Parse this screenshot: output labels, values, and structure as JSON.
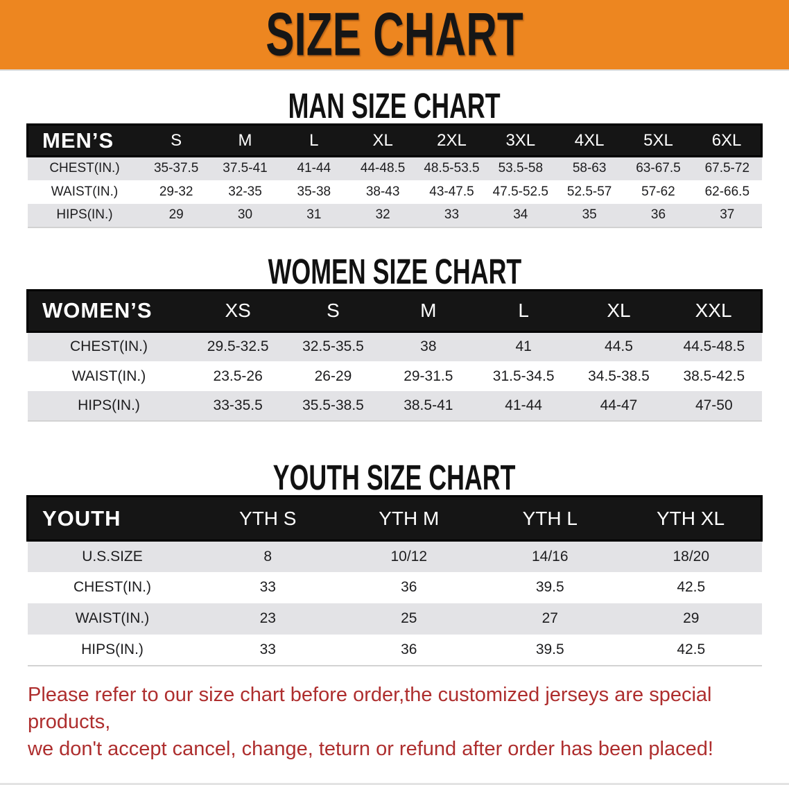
{
  "banner": {
    "title": "SIZE CHART"
  },
  "colors": {
    "banner_bg": "#ED8620",
    "table_header_bg": "#151515",
    "row_stripe": "#E3E3E6",
    "disclaimer_text": "#AE2E2E"
  },
  "sections": [
    {
      "heading": "MAN SIZE CHART",
      "table": {
        "label": "MEN’S",
        "columns": [
          "S",
          "M",
          "L",
          "XL",
          "2XL",
          "3XL",
          "4XL",
          "5XL",
          "6XL"
        ],
        "rows": [
          {
            "label": "CHEST(IN.)",
            "values": [
              "35-37.5",
              "37.5-41",
              "41-44",
              "44-48.5",
              "48.5-53.5",
              "53.5-58",
              "58-63",
              "63-67.5",
              "67.5-72"
            ]
          },
          {
            "label": "WAIST(IN.)",
            "values": [
              "29-32",
              "32-35",
              "35-38",
              "38-43",
              "43-47.5",
              "47.5-52.5",
              "52.5-57",
              "57-62",
              "62-66.5"
            ]
          },
          {
            "label": "HIPS(IN.)",
            "values": [
              "29",
              "30",
              "31",
              "32",
              "33",
              "34",
              "35",
              "36",
              "37"
            ]
          }
        ]
      }
    },
    {
      "heading": "WOMEN SIZE CHART",
      "table": {
        "label": "WOMEN’S",
        "columns": [
          "XS",
          "S",
          "M",
          "L",
          "XL",
          "XXL"
        ],
        "rows": [
          {
            "label": "CHEST(IN.)",
            "values": [
              "29.5-32.5",
              "32.5-35.5",
              "38",
              "41",
              "44.5",
              "44.5-48.5"
            ]
          },
          {
            "label": "WAIST(IN.)",
            "values": [
              "23.5-26",
              "26-29",
              "29-31.5",
              "31.5-34.5",
              "34.5-38.5",
              "38.5-42.5"
            ]
          },
          {
            "label": "HIPS(IN.)",
            "values": [
              "33-35.5",
              "35.5-38.5",
              "38.5-41",
              "41-44",
              "44-47",
              "47-50"
            ]
          }
        ]
      }
    },
    {
      "heading": "YOUTH SIZE CHART",
      "table": {
        "label": "YOUTH",
        "columns": [
          "YTH S",
          "YTH M",
          "YTH L",
          "YTH XL"
        ],
        "rows": [
          {
            "label": "U.S.SIZE",
            "values": [
              "8",
              "10/12",
              "14/16",
              "18/20"
            ]
          },
          {
            "label": "CHEST(IN.)",
            "values": [
              "33",
              "36",
              "39.5",
              "42.5"
            ]
          },
          {
            "label": "WAIST(IN.)",
            "values": [
              "23",
              "25",
              "27",
              "29"
            ]
          },
          {
            "label": "HIPS(IN.)",
            "values": [
              "33",
              "36",
              "39.5",
              "42.5"
            ]
          }
        ]
      }
    }
  ],
  "disclaimer": {
    "line1": "Please refer to our size chart before order,the customized jerseys are special products,",
    "line2": "we don't accept cancel, change, teturn or refund after order has been placed!"
  }
}
